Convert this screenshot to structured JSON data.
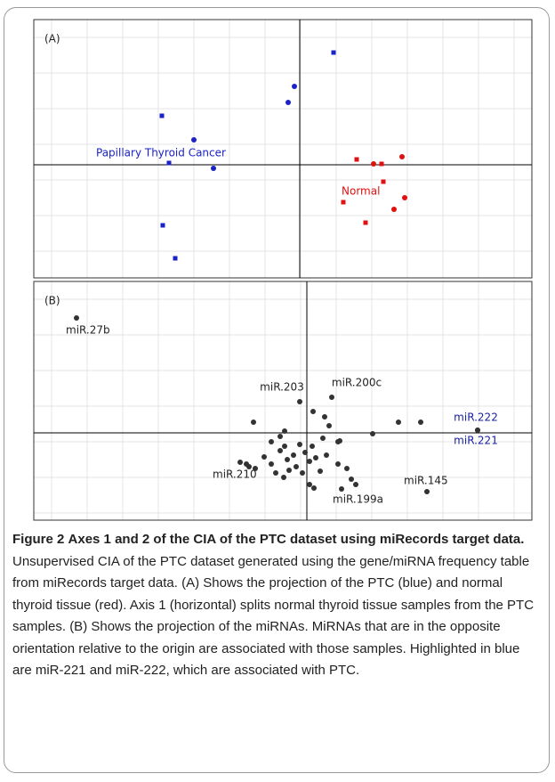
{
  "chart_data": [
    {
      "type": "scatter",
      "title": "(A)",
      "grid": true,
      "xlim": [
        -29.9,
        26.1
      ],
      "ylim": [
        -12.7,
        16.3
      ],
      "series": [
        {
          "name": "Papillary Thyroid Cancer",
          "color": "#1a22c8",
          "x": [
            3.8,
            -0.6,
            -15.5,
            -11.9,
            -14,
            -1.3,
            -14.7,
            -9.7,
            -15.4
          ],
          "values": [
            12.6,
            8.8,
            5.5,
            2.8,
            -10.5,
            7,
            0.2,
            -0.4,
            -6.8
          ]
        },
        {
          "name": "Normal",
          "color": "#e01010",
          "x": [
            6.4,
            8.3,
            9.2,
            11.5,
            9.4,
            11.8,
            4.9,
            10.6,
            7.4
          ],
          "values": [
            0.6,
            0.1,
            0.1,
            0.9,
            -1.9,
            -3.7,
            -4.2,
            -5,
            -6.5
          ]
        }
      ]
    },
    {
      "type": "scatter",
      "title": "(B)",
      "grid": true,
      "xlim": [
        -30.7,
        25.3
      ],
      "ylim": [
        -9.8,
        17
      ],
      "series": [
        {
          "color": "#333333",
          "label_color": "#222222",
          "x": [
            -25.9,
            -0.8,
            2.8,
            13.5,
            3.9,
            -6.8,
            -7.5,
            -6.5,
            -5.8,
            -4.8,
            -4,
            -3.5,
            -3,
            -2.5,
            -2.2,
            -2,
            -1.5,
            -1.2,
            -0.8,
            -0.5,
            -0.2,
            0.3,
            0.6,
            1,
            1.5,
            1.8,
            2.2,
            3.5,
            3.5,
            4.5,
            5,
            -2.5,
            -3,
            -6,
            -4,
            0.8,
            0.3,
            2.5,
            2,
            0.7,
            3.7,
            7.4,
            10.3,
            12.8,
            5.5,
            -2.6
          ],
          "values": [
            12.9,
            3.5,
            4,
            -6.6,
            -6.3,
            -3.5,
            -3.3,
            -3.8,
            -4,
            -2.7,
            -3.5,
            -4.5,
            -2,
            -1.5,
            -3,
            -4.2,
            -2.5,
            -3.8,
            -1.3,
            -4.5,
            -2.2,
            -3.2,
            -1.5,
            -2.8,
            -4.3,
            -0.6,
            -2.5,
            -1,
            -3.5,
            -4,
            -5.2,
            0.2,
            -0.4,
            1.2,
            -1,
            -6.2,
            -5.8,
            0.8,
            1.8,
            2.4,
            -0.9,
            -0.1,
            1.2,
            1.2,
            -5.8,
            -5
          ],
          "labels": [
            "miR.27b",
            "miR.203",
            "miR.200c",
            "miR.145",
            "miR.199a",
            "miR.210",
            null,
            null,
            null,
            null,
            null,
            null,
            null,
            null,
            null,
            null,
            null,
            null,
            null,
            null,
            null,
            null,
            null,
            null,
            null,
            null,
            null,
            null,
            null,
            null,
            null,
            null,
            null,
            null,
            null,
            null,
            null,
            null,
            null,
            null,
            null,
            null,
            null,
            null,
            null,
            null
          ]
        },
        {
          "color": "#333333",
          "label_color": "#1a22a0",
          "x": [
            19.2,
            19.2
          ],
          "values": [
            0.3,
            0.3
          ],
          "labels": [
            "miR.222",
            "miR.221"
          ]
        }
      ]
    }
  ],
  "caption": {
    "label": "Figure 2",
    "title": "Axes 1 and 2 of the CIA of the PTC dataset using miRecords target data.",
    "text": "Unsupervised CIA of the PTC dataset generated using the gene/miRNA frequency table from miRecords target data. (A) Shows the projection of the PTC (blue) and normal thyroid tissue (red). Axis 1 (horizontal) splits normal thyroid tissue samples from the PTC samples. (B) Shows the projection of the miRNAs. MiRNAs that are in the opposite orientation relative to the origin are associated with those samples. Highlighted in blue are miR-221 and miR-222, which are associated with PTC."
  }
}
